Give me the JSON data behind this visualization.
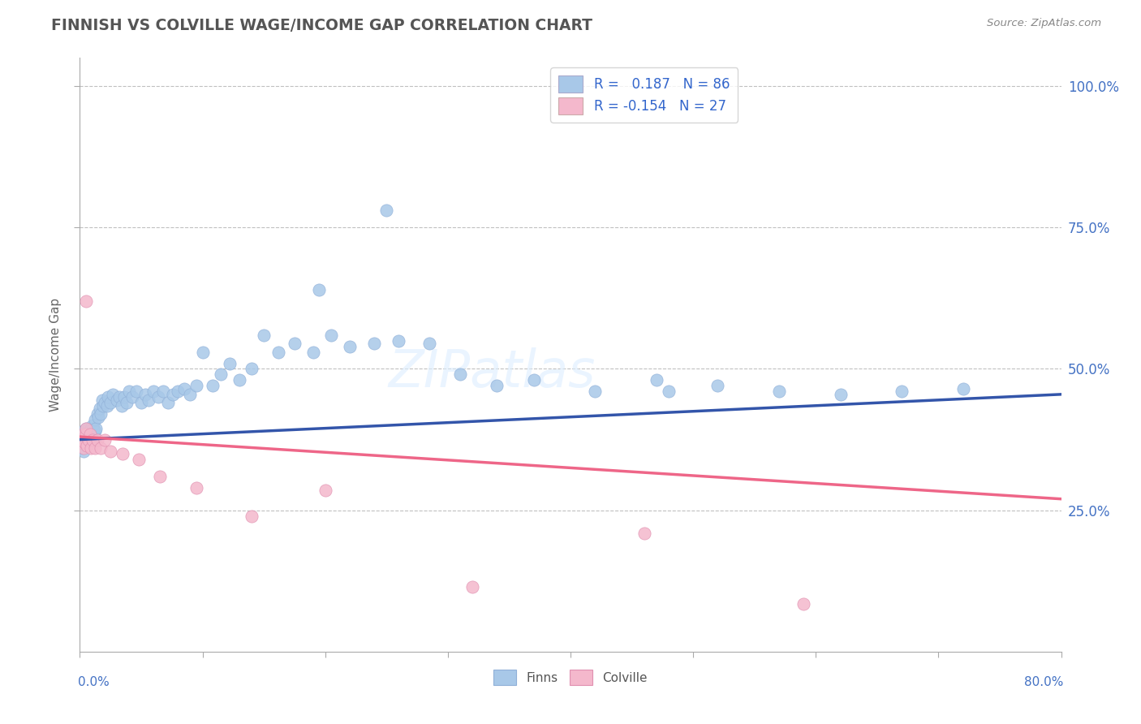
{
  "title": "FINNISH VS COLVILLE WAGE/INCOME GAP CORRELATION CHART",
  "source": "Source: ZipAtlas.com",
  "ylabel": "Wage/Income Gap",
  "right_ytick_labels": [
    "25.0%",
    "50.0%",
    "75.0%",
    "100.0%"
  ],
  "finn_color": "#a8c8e8",
  "colville_color": "#f4b8cc",
  "finn_line_color": "#3355aa",
  "colville_line_color": "#ee6688",
  "watermark_color": "#e0e8f0",
  "finns_x": [
    0.001,
    0.002,
    0.002,
    0.003,
    0.003,
    0.003,
    0.004,
    0.004,
    0.005,
    0.005,
    0.005,
    0.006,
    0.006,
    0.007,
    0.007,
    0.007,
    0.008,
    0.008,
    0.009,
    0.009,
    0.01,
    0.01,
    0.011,
    0.011,
    0.012,
    0.012,
    0.013,
    0.014,
    0.015,
    0.016,
    0.017,
    0.018,
    0.019,
    0.02,
    0.022,
    0.023,
    0.025,
    0.027,
    0.03,
    0.032,
    0.034,
    0.036,
    0.038,
    0.04,
    0.043,
    0.046,
    0.05,
    0.053,
    0.056,
    0.06,
    0.064,
    0.068,
    0.072,
    0.076,
    0.08,
    0.085,
    0.09,
    0.095,
    0.1,
    0.108,
    0.115,
    0.122,
    0.13,
    0.14,
    0.15,
    0.162,
    0.175,
    0.19,
    0.205,
    0.22,
    0.24,
    0.26,
    0.285,
    0.31,
    0.34,
    0.37,
    0.42,
    0.47,
    0.52,
    0.57,
    0.62,
    0.67,
    0.72,
    0.25,
    0.48,
    0.195
  ],
  "finns_y": [
    0.37,
    0.38,
    0.36,
    0.375,
    0.39,
    0.355,
    0.37,
    0.385,
    0.375,
    0.395,
    0.365,
    0.38,
    0.37,
    0.395,
    0.375,
    0.385,
    0.39,
    0.375,
    0.385,
    0.395,
    0.4,
    0.38,
    0.395,
    0.375,
    0.39,
    0.41,
    0.395,
    0.42,
    0.415,
    0.43,
    0.42,
    0.445,
    0.435,
    0.44,
    0.435,
    0.45,
    0.44,
    0.455,
    0.445,
    0.45,
    0.435,
    0.45,
    0.44,
    0.46,
    0.45,
    0.46,
    0.44,
    0.455,
    0.445,
    0.46,
    0.45,
    0.46,
    0.44,
    0.455,
    0.46,
    0.465,
    0.455,
    0.47,
    0.53,
    0.47,
    0.49,
    0.51,
    0.48,
    0.5,
    0.56,
    0.53,
    0.545,
    0.53,
    0.56,
    0.54,
    0.545,
    0.55,
    0.545,
    0.49,
    0.47,
    0.48,
    0.46,
    0.48,
    0.47,
    0.46,
    0.455,
    0.46,
    0.465,
    0.78,
    0.46,
    0.64
  ],
  "colville_x": [
    0.001,
    0.002,
    0.003,
    0.003,
    0.004,
    0.005,
    0.005,
    0.006,
    0.007,
    0.008,
    0.009,
    0.01,
    0.012,
    0.014,
    0.017,
    0.02,
    0.025,
    0.035,
    0.048,
    0.065,
    0.095,
    0.14,
    0.2,
    0.32,
    0.46,
    0.59,
    0.005
  ],
  "colville_y": [
    0.37,
    0.38,
    0.36,
    0.385,
    0.37,
    0.385,
    0.395,
    0.365,
    0.375,
    0.385,
    0.36,
    0.375,
    0.36,
    0.375,
    0.36,
    0.375,
    0.355,
    0.35,
    0.34,
    0.31,
    0.29,
    0.24,
    0.285,
    0.115,
    0.21,
    0.085,
    0.62
  ],
  "finns_line": [
    0.375,
    0.455
  ],
  "colville_line": [
    0.38,
    0.27
  ],
  "xlim": [
    0.0,
    0.8
  ],
  "ylim": [
    0.0,
    1.05
  ],
  "grid_yticks": [
    0.25,
    0.5,
    0.75,
    1.0
  ]
}
